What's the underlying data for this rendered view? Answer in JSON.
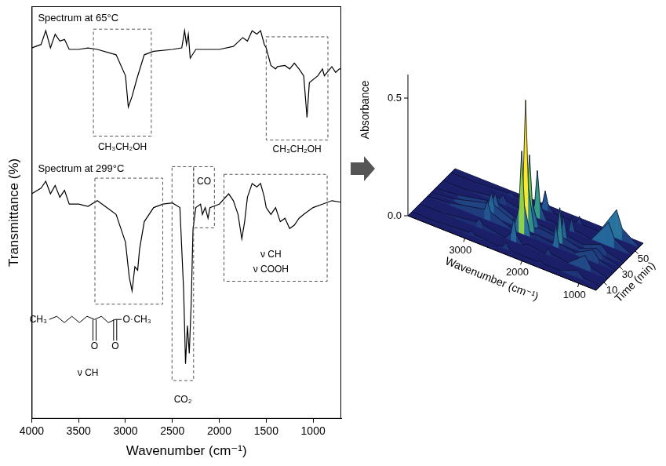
{
  "chart_data": [
    {
      "type": "line",
      "xlabel": "Wavenumber (cm⁻¹)",
      "ylabel": "Transmittance (%)",
      "xlim": [
        4000,
        700
      ],
      "xticks": [
        4000,
        3500,
        3000,
        2500,
        2000,
        1500,
        1000
      ],
      "ylim": [
        -8,
        100
      ],
      "tick_labels": "x",
      "grid": false,
      "series": [
        {
          "name": "Spectrum at 65°C",
          "color": "#000000",
          "x": [
            4000,
            3900,
            3850,
            3800,
            3750,
            3700,
            3650,
            3600,
            3500,
            3400,
            3300,
            3100,
            3000,
            2970,
            2930,
            2880,
            2800,
            2700,
            2500,
            2400,
            2370,
            2350,
            2330,
            2310,
            2250,
            2000,
            1850,
            1750,
            1700,
            1650,
            1600,
            1560,
            1520,
            1500,
            1450,
            1400,
            1380,
            1300,
            1250,
            1200,
            1150,
            1100,
            1065,
            1040,
            950,
            900,
            880,
            800,
            760,
            720,
            700
          ],
          "values": [
            89.1,
            90.0,
            93.6,
            89.1,
            92.7,
            90.9,
            91.3,
            88.7,
            88.7,
            89.1,
            88.7,
            87.3,
            81.8,
            73.6,
            76.4,
            80.9,
            87.3,
            88.2,
            88.7,
            89.1,
            93.6,
            90.0,
            92.7,
            86.4,
            88.7,
            88.7,
            89.5,
            91.8,
            90.9,
            93.6,
            92.7,
            93.6,
            90.0,
            89.1,
            84.5,
            83.6,
            84.2,
            84.5,
            83.6,
            85.1,
            83.6,
            81.8,
            70.9,
            80.0,
            81.8,
            83.6,
            81.8,
            84.2,
            82.7,
            83.6,
            83.6
          ]
        },
        {
          "name": "Spectrum at 299°C",
          "color": "#000000",
          "x": [
            4000,
            3900,
            3850,
            3800,
            3750,
            3700,
            3650,
            3600,
            3500,
            3400,
            3300,
            3200,
            3100,
            3000,
            2960,
            2930,
            2900,
            2870,
            2850,
            2800,
            2700,
            2600,
            2500,
            2420,
            2380,
            2360,
            2340,
            2320,
            2300,
            2280,
            2250,
            2200,
            2180,
            2150,
            2120,
            2100,
            2000,
            1900,
            1850,
            1800,
            1760,
            1730,
            1700,
            1650,
            1600,
            1560,
            1520,
            1500,
            1450,
            1400,
            1350,
            1300,
            1250,
            1200,
            1150,
            1100,
            1000,
            900,
            800,
            700
          ],
          "values": [
            50.9,
            52.4,
            54.2,
            50.9,
            53.1,
            50.0,
            51.8,
            48.2,
            48.2,
            47.6,
            49.1,
            47.3,
            45.5,
            38.2,
            29.1,
            25.5,
            31.8,
            30.9,
            36.4,
            43.6,
            47.3,
            48.2,
            48.5,
            47.3,
            25.5,
            6.4,
            16.4,
            9.1,
            21.8,
            41.8,
            47.3,
            48.2,
            45.5,
            47.3,
            44.5,
            47.3,
            48.2,
            50.9,
            49.1,
            45.5,
            39.1,
            43.6,
            50.0,
            53.6,
            52.7,
            53.6,
            50.0,
            47.3,
            45.5,
            47.3,
            43.6,
            44.5,
            41.8,
            42.7,
            44.5,
            45.5,
            47.3,
            48.2,
            49.1,
            48.7
          ]
        }
      ],
      "regions": [
        {
          "x_range": [
            3342,
            2725
          ],
          "y_range": [
            94,
            66
          ]
        },
        {
          "x_range": [
            1500,
            842
          ],
          "y_range": [
            92,
            65
          ]
        },
        {
          "x_range": [
            3326,
            2603
          ],
          "y_range": [
            55,
            22
          ]
        },
        {
          "x_range": [
            2504,
            2274
          ],
          "y_range": [
            58,
            2
          ]
        },
        {
          "x_range": [
            2274,
            2052
          ],
          "y_range": [
            58,
            42
          ]
        },
        {
          "x_range": [
            1950,
            850
          ],
          "y_range": [
            56,
            28
          ]
        }
      ],
      "annotations": [
        {
          "text": "CH₃CH₂OH",
          "x": 3033,
          "y": 63
        },
        {
          "text": "CH₃CH₂OH",
          "x": 1171,
          "y": 62.5
        },
        {
          "text": "CO₂",
          "x": 2389,
          "y": -3
        },
        {
          "text": "CO",
          "x": 2163,
          "y": 54
        },
        {
          "text": "ν CH",
          "x": 3400,
          "y": 4
        },
        {
          "text": "ν CH",
          "x": 1450,
          "y": 35
        },
        {
          "text": "ν COOH",
          "x": 1450,
          "y": 31
        }
      ],
      "structure": [
        {
          "text": "CH₃",
          "x": 3930,
          "y": 18
        },
        {
          "text": "O",
          "x": 3330,
          "y": 11
        },
        {
          "text": "O",
          "x": 3110,
          "y": 11
        },
        {
          "text": "O",
          "x": 2990,
          "y": 18
        },
        {
          "text": "CH₃",
          "x": 2820,
          "y": 18
        }
      ]
    },
    {
      "type": "surface",
      "xlabel": "Wavenumber (cm⁻¹)",
      "ylabel": "Time (min)",
      "zlabel": "Absorbance",
      "xlim": [
        4000,
        700
      ],
      "xticks": [
        3000,
        2000,
        1000
      ],
      "ylim": [
        0,
        60
      ],
      "yticks": [
        10,
        30,
        50
      ],
      "zlim": [
        0,
        0.6
      ],
      "zticks": [
        {
          "value": 0,
          "label": "0.0"
        },
        {
          "value": 0.5,
          "label": "0.5"
        }
      ],
      "x": [
        4000,
        3600,
        3000,
        2950,
        2900,
        2500,
        2400,
        2350,
        2300,
        2200,
        2100,
        1800,
        1750,
        1700,
        1400,
        1100,
        1000,
        700
      ],
      "y": [
        5,
        15,
        25,
        30,
        35,
        45,
        55
      ],
      "z": [
        [
          0,
          0,
          0.01,
          0.02,
          0.01,
          0,
          0.01,
          0.03,
          0.01,
          0,
          0,
          0,
          0.01,
          0,
          0,
          0.03,
          0.01,
          0
        ],
        [
          0,
          0,
          0.02,
          0.04,
          0.02,
          0,
          0.03,
          0.1,
          0.03,
          0,
          0.01,
          0,
          0.03,
          0.01,
          0,
          0.06,
          0.02,
          0
        ],
        [
          0,
          0.01,
          0.04,
          0.08,
          0.04,
          0,
          0.1,
          0.35,
          0.12,
          0.01,
          0.02,
          0.01,
          0.1,
          0.02,
          0.01,
          0.05,
          0.02,
          0
        ],
        [
          0,
          0.01,
          0.05,
          0.1,
          0.05,
          0.01,
          0.15,
          0.55,
          0.18,
          0.02,
          0.03,
          0.02,
          0.15,
          0.03,
          0.01,
          0.04,
          0.02,
          0
        ],
        [
          0,
          0.01,
          0.04,
          0.08,
          0.04,
          0,
          0.1,
          0.3,
          0.1,
          0.02,
          0.02,
          0.01,
          0.1,
          0.02,
          0.01,
          0.04,
          0.02,
          0
        ],
        [
          0,
          0,
          0.02,
          0.04,
          0.02,
          0,
          0.05,
          0.2,
          0.06,
          0.01,
          0.01,
          0,
          0.06,
          0.01,
          0,
          0.1,
          0.04,
          0
        ],
        [
          0,
          0,
          0.01,
          0.02,
          0.01,
          0,
          0.02,
          0.08,
          0.03,
          0,
          0,
          0,
          0.03,
          0,
          0,
          0.12,
          0.05,
          0
        ]
      ]
    }
  ]
}
